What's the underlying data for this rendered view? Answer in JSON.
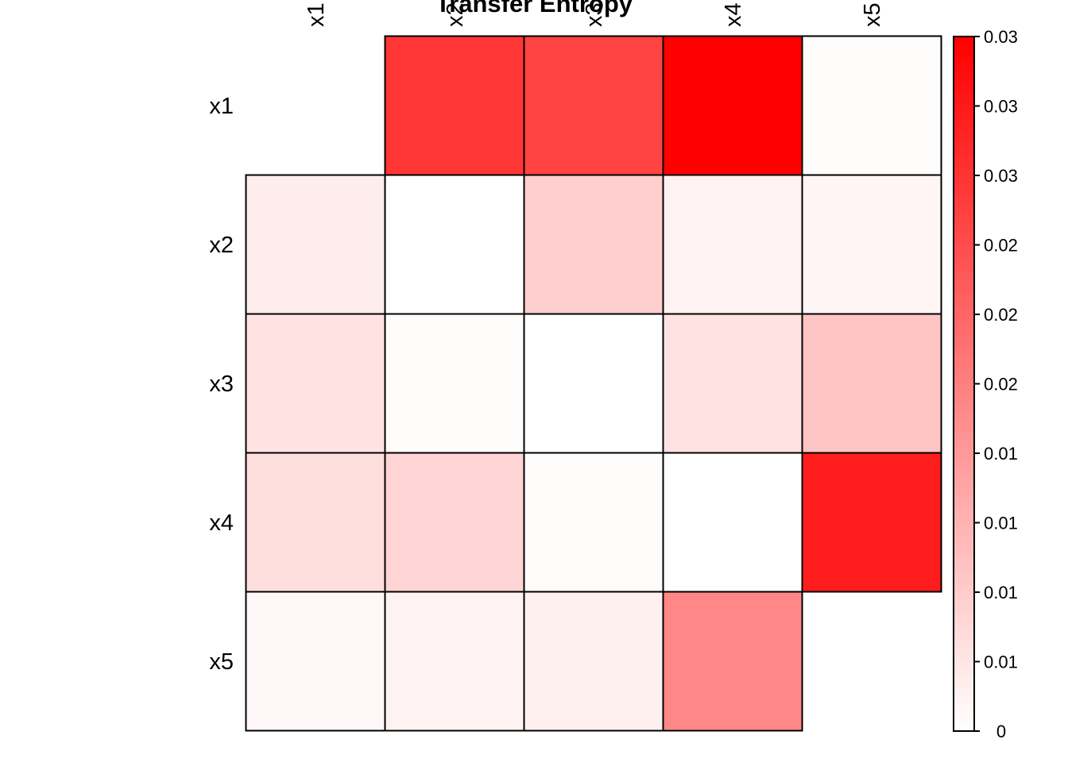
{
  "chart_data": {
    "type": "heatmap",
    "title": "Transfer Entropy",
    "row_labels": [
      "x1",
      "x2",
      "x3",
      "x4",
      "x5"
    ],
    "col_labels": [
      "x1",
      "x2",
      "x3",
      "x4",
      "x5"
    ],
    "values": [
      [
        null,
        0.0237,
        0.0222,
        0.03,
        0.0003
      ],
      [
        0.0021,
        0.0,
        0.0057,
        0.0015,
        0.0012
      ],
      [
        0.0033,
        0.0003,
        0.0,
        0.0033,
        0.0069
      ],
      [
        0.0039,
        0.0051,
        0.0003,
        0.0,
        0.0267
      ],
      [
        0.0009,
        0.0015,
        0.0018,
        0.0141,
        null
      ]
    ],
    "colorbar": {
      "min": 0,
      "max": 0.03,
      "low_color": "#ffffff",
      "high_color": "#ff0000",
      "tick_labels": [
        "0.03",
        "0.03",
        "0.03",
        "0.02",
        "0.02",
        "0.02",
        "0.01",
        "0.01",
        "0.01",
        "0.01",
        "0"
      ]
    },
    "grid": true,
    "legend": "right"
  }
}
